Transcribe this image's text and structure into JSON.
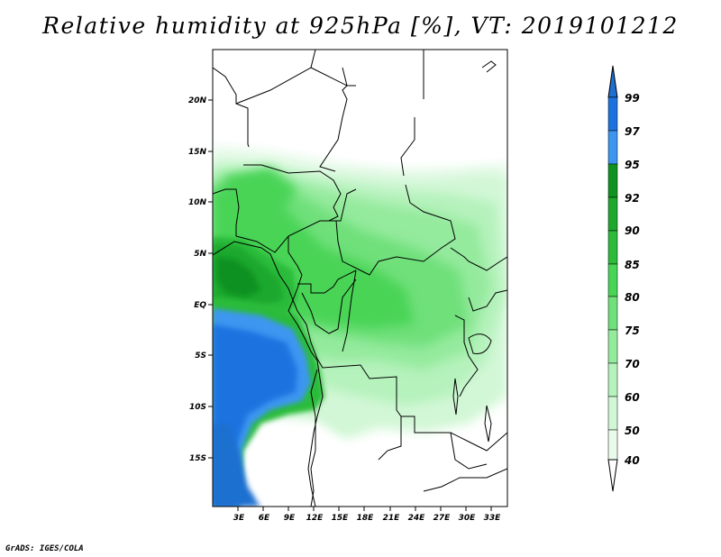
{
  "title": "Relative humidity at 925hPa [%], VT: 2019101212",
  "credit": "GrADS: IGES/COLA",
  "map": {
    "lat_ticks": [
      "20N",
      "15N",
      "10N",
      "5N",
      "EQ",
      "5S",
      "10S",
      "15S"
    ],
    "lon_ticks": [
      "3E",
      "6E",
      "9E",
      "12E",
      "15E",
      "18E",
      "21E",
      "24E",
      "27E",
      "30E",
      "33E"
    ],
    "grid": false
  },
  "colorbar": {
    "levels": [
      "99",
      "97",
      "95",
      "92",
      "90",
      "85",
      "80",
      "75",
      "70",
      "60",
      "50",
      "40"
    ],
    "colors": {
      "above_99": "#1f6fd0",
      "97_99": "#1c73e0",
      "95_97": "#3c96f0",
      "92_95": "#0f9220",
      "90_92": "#1fa82d",
      "85_90": "#2cbb3b",
      "80_85": "#48d456",
      "75_80": "#6fe07a",
      "70_75": "#94ea9d",
      "60_70": "#b5f2bc",
      "50_60": "#d2f7d6",
      "40_50": "#eafbec",
      "below_40": "#ffffff"
    }
  }
}
